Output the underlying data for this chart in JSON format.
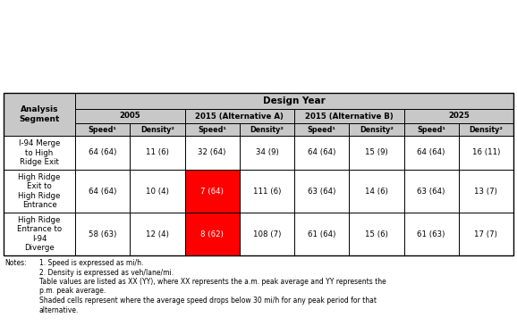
{
  "title": "Design Year",
  "group_labels": [
    "2005",
    "2015 (Alternative A)",
    "2015 (Alternative B)",
    "2025"
  ],
  "col_labels": [
    "Speed¹",
    "Density²",
    "Speed¹",
    "Density²",
    "Speed¹",
    "Density²",
    "Speed¹",
    "Density²"
  ],
  "row_header_label": "Analysis\nSegment",
  "rows": [
    {
      "label": "I-94 Merge\nto High\nRidge Exit",
      "values": [
        "64 (64)",
        "11 (6)",
        "32 (64)",
        "34 (9)",
        "64 (64)",
        "15 (9)",
        "64 (64)",
        "16 (11)"
      ],
      "shaded": [
        false,
        false,
        false,
        false,
        false,
        false,
        false,
        false
      ]
    },
    {
      "label": "High Ridge\nExit to\nHigh Ridge\nEntrance",
      "values": [
        "64 (64)",
        "10 (4)",
        "7 (64)",
        "111 (6)",
        "63 (64)",
        "14 (6)",
        "63 (64)",
        "13 (7)"
      ],
      "shaded": [
        false,
        false,
        true,
        false,
        false,
        false,
        false,
        false
      ]
    },
    {
      "label": "High Ridge\nEntrance to\nI-94\nDiverge",
      "values": [
        "58 (63)",
        "12 (4)",
        "8 (62)",
        "108 (7)",
        "61 (64)",
        "15 (6)",
        "61 (63)",
        "17 (7)"
      ],
      "shaded": [
        false,
        false,
        true,
        false,
        false,
        false,
        false,
        false
      ]
    }
  ],
  "notes_lines": [
    [
      "Notes:",
      "  1. Speed is expressed as mi/h."
    ],
    [
      "",
      "2. Density is expressed as veh/lane/mi."
    ],
    [
      "",
      "Table values are listed as XX (YY), where XX represents the a.m. peak average and YY represents the"
    ],
    [
      "",
      "p.m. peak average."
    ],
    [
      "",
      "Shaded cells represent where the average speed drops below 30 mi/h for any peak period for that"
    ],
    [
      "",
      "alternative."
    ]
  ],
  "shaded_color": "#FF0000",
  "header_bg": "#C8C8C8",
  "white_bg": "#FFFFFF",
  "border_color": "#000000",
  "figwidth": 5.78,
  "figheight": 3.65,
  "dpi": 100
}
